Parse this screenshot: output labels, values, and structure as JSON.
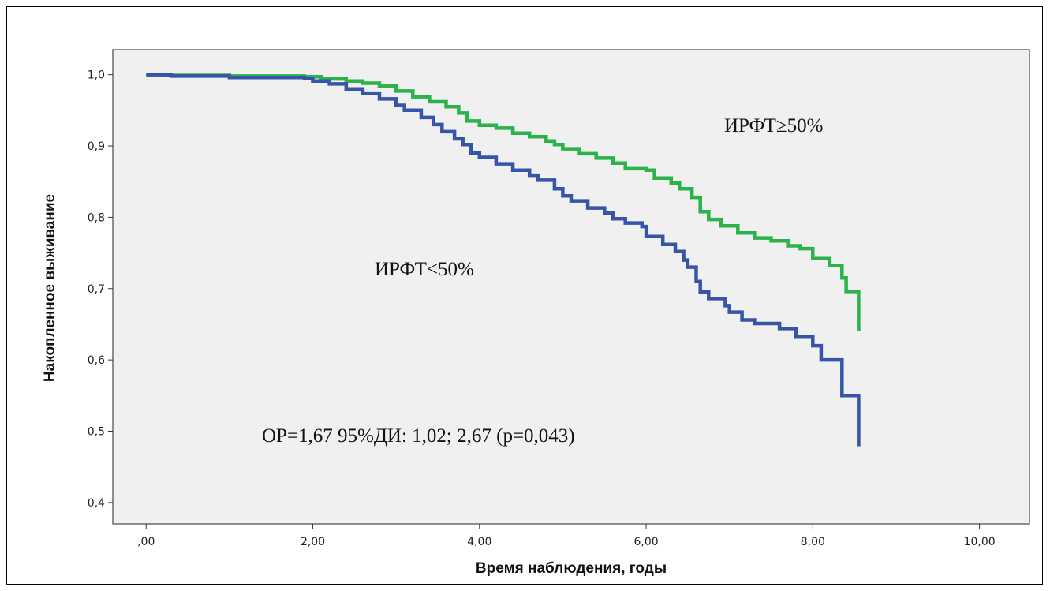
{
  "chart_data": {
    "type": "line",
    "subtype": "kaplan-meier",
    "title": "",
    "xlabel": "Время наблюдения, годы",
    "ylabel": "Накопленное выживание",
    "xlim": [
      -0.4,
      10.6
    ],
    "ylim": [
      0.37,
      1.035
    ],
    "x_ticks": [
      0,
      2,
      4,
      6,
      8,
      10
    ],
    "x_tick_labels": [
      ",00",
      "2,00",
      "4,00",
      "6,00",
      "8,00",
      "10,00"
    ],
    "y_ticks": [
      0.4,
      0.5,
      0.6,
      0.7,
      0.8,
      0.9,
      1.0
    ],
    "y_tick_labels": [
      "0,4",
      "0,5",
      "0,6",
      "0,7",
      "0,8",
      "0,9",
      "1,0"
    ],
    "grid": false,
    "background_color": "#f0f0f0",
    "series": [
      {
        "color": "#2bb24a",
        "points": [
          [
            0,
            1.0
          ],
          [
            0.25,
            0.999
          ],
          [
            1.0,
            0.998
          ],
          [
            1.9,
            0.997
          ],
          [
            2.1,
            0.994
          ],
          [
            2.4,
            0.991
          ],
          [
            2.6,
            0.988
          ],
          [
            2.8,
            0.984
          ],
          [
            3.0,
            0.977
          ],
          [
            3.2,
            0.969
          ],
          [
            3.4,
            0.962
          ],
          [
            3.6,
            0.955
          ],
          [
            3.75,
            0.946
          ],
          [
            3.85,
            0.935
          ],
          [
            4.0,
            0.929
          ],
          [
            4.2,
            0.925
          ],
          [
            4.4,
            0.918
          ],
          [
            4.6,
            0.913
          ],
          [
            4.8,
            0.907
          ],
          [
            4.9,
            0.902
          ],
          [
            5.0,
            0.896
          ],
          [
            5.2,
            0.889
          ],
          [
            5.4,
            0.883
          ],
          [
            5.6,
            0.876
          ],
          [
            5.75,
            0.868
          ],
          [
            6.0,
            0.866
          ],
          [
            6.1,
            0.855
          ],
          [
            6.3,
            0.848
          ],
          [
            6.4,
            0.84
          ],
          [
            6.55,
            0.828
          ],
          [
            6.65,
            0.808
          ],
          [
            6.75,
            0.797
          ],
          [
            6.9,
            0.788
          ],
          [
            7.1,
            0.778
          ],
          [
            7.3,
            0.771
          ],
          [
            7.5,
            0.767
          ],
          [
            7.7,
            0.76
          ],
          [
            7.85,
            0.756
          ],
          [
            8.0,
            0.742
          ],
          [
            8.2,
            0.732
          ],
          [
            8.35,
            0.715
          ],
          [
            8.4,
            0.696
          ],
          [
            8.55,
            0.668
          ],
          [
            8.55,
            0.641
          ]
        ]
      },
      {
        "color": "#3755a8",
        "points": [
          [
            0,
            1.0
          ],
          [
            0.3,
            0.998
          ],
          [
            1.0,
            0.996
          ],
          [
            1.9,
            0.995
          ],
          [
            2.0,
            0.991
          ],
          [
            2.2,
            0.987
          ],
          [
            2.4,
            0.98
          ],
          [
            2.6,
            0.974
          ],
          [
            2.8,
            0.966
          ],
          [
            3.0,
            0.957
          ],
          [
            3.1,
            0.95
          ],
          [
            3.3,
            0.94
          ],
          [
            3.45,
            0.93
          ],
          [
            3.55,
            0.92
          ],
          [
            3.7,
            0.91
          ],
          [
            3.8,
            0.902
          ],
          [
            3.9,
            0.89
          ],
          [
            4.0,
            0.884
          ],
          [
            4.2,
            0.875
          ],
          [
            4.4,
            0.866
          ],
          [
            4.6,
            0.859
          ],
          [
            4.7,
            0.852
          ],
          [
            4.9,
            0.84
          ],
          [
            5.0,
            0.83
          ],
          [
            5.1,
            0.823
          ],
          [
            5.3,
            0.813
          ],
          [
            5.5,
            0.806
          ],
          [
            5.6,
            0.798
          ],
          [
            5.75,
            0.792
          ],
          [
            5.95,
            0.787
          ],
          [
            6.0,
            0.773
          ],
          [
            6.2,
            0.762
          ],
          [
            6.35,
            0.752
          ],
          [
            6.45,
            0.74
          ],
          [
            6.5,
            0.73
          ],
          [
            6.6,
            0.71
          ],
          [
            6.65,
            0.695
          ],
          [
            6.75,
            0.686
          ],
          [
            6.95,
            0.676
          ],
          [
            7.0,
            0.667
          ],
          [
            7.15,
            0.656
          ],
          [
            7.3,
            0.651
          ],
          [
            7.6,
            0.644
          ],
          [
            7.8,
            0.633
          ],
          [
            8.0,
            0.62
          ],
          [
            8.1,
            0.6
          ],
          [
            8.35,
            0.58
          ],
          [
            8.35,
            0.55
          ],
          [
            8.5,
            0.55
          ],
          [
            8.55,
            0.515
          ],
          [
            8.55,
            0.479
          ]
        ]
      }
    ],
    "annotations": [
      "ИРФТ≥50%",
      "ИРФТ<50%",
      "ОР=1,67 95%ДИ: 1,02; 2,67 (р=0,043)"
    ]
  }
}
